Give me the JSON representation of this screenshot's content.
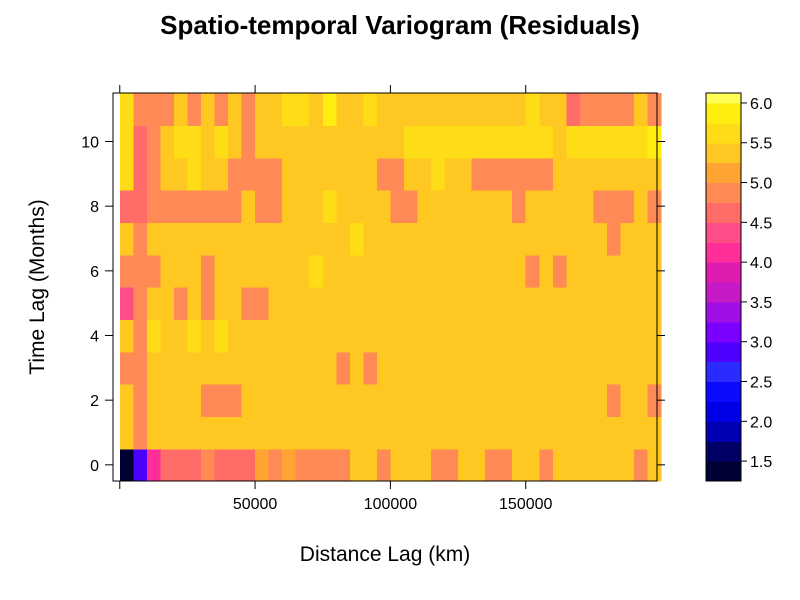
{
  "chart_data": {
    "type": "heatmap",
    "title": "Spatio-temporal Variogram (Residuals)",
    "xlabel": "Distance Lag (km)",
    "ylabel": "Time Lag (Months)",
    "xlim": [
      -2500,
      198500
    ],
    "ylim": [
      -0.5,
      11.5
    ],
    "x_ticks": [
      {
        "value": 50000,
        "label": "50000"
      },
      {
        "value": 100000,
        "label": "100000"
      },
      {
        "value": 150000,
        "label": "150000"
      }
    ],
    "y_ticks": [
      {
        "value": 0,
        "label": "0"
      },
      {
        "value": 2,
        "label": "2"
      },
      {
        "value": 4,
        "label": "4"
      },
      {
        "value": 6,
        "label": "6"
      },
      {
        "value": 8,
        "label": "8"
      },
      {
        "value": 10,
        "label": "10"
      }
    ],
    "x_bin_width": 5000,
    "x_bin_centers": [
      2500,
      7500,
      12500,
      17500,
      22500,
      27500,
      32500,
      37500,
      42500,
      47500,
      52500,
      57500,
      62500,
      67500,
      72500,
      77500,
      82500,
      87500,
      92500,
      97500,
      102500,
      107500,
      112500,
      117500,
      122500,
      127500,
      132500,
      137500,
      142500,
      147500,
      152500,
      157500,
      162500,
      167500,
      172500,
      177500,
      182500,
      187500,
      192500,
      197500
    ],
    "y_values": [
      0,
      1,
      2,
      3,
      4,
      5,
      6,
      7,
      8,
      9,
      10,
      11
    ],
    "z_rows": [
      [
        1.3,
        2.9,
        4.0,
        4.6,
        4.6,
        4.6,
        4.9,
        4.6,
        4.7,
        4.7,
        5.1,
        4.9,
        5.1,
        4.9,
        4.9,
        4.9,
        4.9,
        5.3,
        5.3,
        4.9,
        5.3,
        5.3,
        5.3,
        4.9,
        4.9,
        5.3,
        5.3,
        4.9,
        4.9,
        5.3,
        5.3,
        4.9,
        5.3,
        5.3,
        5.3,
        5.3,
        5.3,
        5.3,
        4.9,
        5.3
      ],
      [
        5.3,
        4.9,
        5.3,
        5.3,
        5.3,
        5.3,
        5.3,
        5.3,
        5.3,
        5.3,
        5.3,
        5.3,
        5.3,
        5.3,
        5.3,
        5.3,
        5.3,
        5.3,
        5.3,
        5.3,
        5.3,
        5.3,
        5.3,
        5.3,
        5.3,
        5.3,
        5.3,
        5.3,
        5.3,
        5.3,
        5.3,
        5.3,
        5.3,
        5.3,
        5.3,
        5.3,
        5.3,
        5.3,
        5.3,
        5.3
      ],
      [
        5.3,
        4.9,
        5.3,
        5.3,
        5.3,
        5.3,
        4.9,
        4.9,
        4.9,
        5.3,
        5.3,
        5.3,
        5.3,
        5.3,
        5.3,
        5.3,
        5.3,
        5.3,
        5.3,
        5.3,
        5.3,
        5.3,
        5.3,
        5.3,
        5.3,
        5.3,
        5.3,
        5.3,
        5.3,
        5.3,
        5.3,
        5.3,
        5.3,
        5.3,
        5.3,
        5.3,
        4.9,
        5.3,
        5.3,
        4.9
      ],
      [
        4.9,
        4.9,
        5.3,
        5.3,
        5.3,
        5.3,
        5.3,
        5.3,
        5.3,
        5.3,
        5.3,
        5.3,
        5.3,
        5.3,
        5.3,
        5.3,
        4.9,
        5.3,
        4.9,
        5.3,
        5.3,
        5.3,
        5.3,
        5.3,
        5.3,
        5.3,
        5.3,
        5.3,
        5.3,
        5.3,
        5.3,
        5.3,
        5.3,
        5.3,
        5.3,
        5.3,
        5.3,
        5.3,
        5.3,
        5.3
      ],
      [
        5.3,
        4.9,
        5.6,
        5.3,
        5.3,
        5.6,
        5.3,
        5.6,
        5.3,
        5.3,
        5.3,
        5.3,
        5.3,
        5.3,
        5.3,
        5.3,
        5.3,
        5.3,
        5.3,
        5.3,
        5.3,
        5.3,
        5.3,
        5.3,
        5.3,
        5.3,
        5.3,
        5.3,
        5.3,
        5.3,
        5.3,
        5.3,
        5.3,
        5.3,
        5.3,
        5.3,
        5.3,
        5.3,
        5.3,
        5.3
      ],
      [
        4.3,
        4.9,
        5.3,
        5.3,
        4.9,
        5.3,
        4.9,
        5.3,
        5.3,
        4.9,
        4.9,
        5.3,
        5.3,
        5.3,
        5.3,
        5.3,
        5.3,
        5.3,
        5.3,
        5.3,
        5.3,
        5.3,
        5.3,
        5.3,
        5.3,
        5.3,
        5.3,
        5.3,
        5.3,
        5.3,
        5.3,
        5.3,
        5.3,
        5.3,
        5.3,
        5.3,
        5.3,
        5.3,
        5.3,
        5.3
      ],
      [
        4.9,
        4.9,
        4.9,
        5.3,
        5.3,
        5.3,
        4.9,
        5.3,
        5.3,
        5.3,
        5.3,
        5.3,
        5.3,
        5.3,
        5.6,
        5.3,
        5.3,
        5.3,
        5.3,
        5.3,
        5.3,
        5.3,
        5.3,
        5.3,
        5.3,
        5.3,
        5.3,
        5.3,
        5.3,
        5.3,
        4.9,
        5.3,
        4.9,
        5.3,
        5.3,
        5.3,
        5.3,
        5.3,
        5.3,
        5.3
      ],
      [
        5.3,
        4.9,
        5.3,
        5.3,
        5.3,
        5.3,
        5.3,
        5.3,
        5.3,
        5.3,
        5.3,
        5.3,
        5.3,
        5.3,
        5.3,
        5.3,
        5.3,
        5.6,
        5.3,
        5.3,
        5.3,
        5.3,
        5.3,
        5.3,
        5.3,
        5.3,
        5.3,
        5.3,
        5.3,
        5.3,
        5.3,
        5.3,
        5.3,
        5.3,
        5.3,
        5.3,
        4.9,
        5.3,
        5.3,
        5.3
      ],
      [
        4.6,
        4.6,
        4.9,
        4.9,
        4.9,
        4.9,
        4.9,
        4.9,
        4.9,
        5.3,
        4.9,
        4.9,
        5.3,
        5.3,
        5.3,
        5.6,
        5.3,
        5.3,
        5.3,
        5.3,
        4.9,
        4.9,
        5.3,
        5.3,
        5.3,
        5.3,
        5.3,
        5.3,
        5.3,
        4.9,
        5.3,
        5.3,
        5.3,
        5.3,
        5.3,
        4.9,
        4.9,
        4.9,
        5.3,
        4.9
      ],
      [
        5.6,
        4.6,
        4.9,
        5.3,
        5.3,
        5.6,
        5.3,
        5.3,
        4.9,
        4.9,
        4.9,
        4.9,
        5.3,
        5.3,
        5.3,
        5.3,
        5.3,
        5.3,
        5.3,
        4.9,
        4.9,
        5.3,
        5.3,
        5.6,
        5.3,
        5.3,
        4.9,
        4.9,
        4.9,
        4.9,
        4.9,
        4.9,
        5.3,
        5.3,
        5.3,
        5.3,
        5.3,
        5.3,
        5.3,
        5.3
      ],
      [
        5.6,
        4.6,
        4.9,
        5.3,
        5.6,
        5.6,
        5.3,
        5.6,
        5.3,
        4.9,
        5.3,
        5.3,
        5.3,
        5.3,
        5.3,
        5.3,
        5.3,
        5.3,
        5.3,
        5.3,
        5.3,
        5.6,
        5.6,
        5.6,
        5.6,
        5.6,
        5.6,
        5.6,
        5.6,
        5.6,
        5.6,
        5.6,
        5.3,
        5.6,
        5.6,
        5.6,
        5.6,
        5.6,
        5.6,
        5.9
      ],
      [
        5.6,
        4.9,
        4.9,
        4.9,
        5.3,
        4.9,
        5.3,
        4.9,
        5.3,
        4.9,
        5.3,
        5.3,
        5.6,
        5.6,
        5.3,
        5.9,
        5.3,
        5.3,
        5.6,
        5.3,
        5.3,
        5.3,
        5.3,
        5.3,
        5.3,
        5.3,
        5.3,
        5.3,
        5.3,
        5.3,
        5.6,
        5.3,
        5.3,
        4.6,
        4.9,
        4.9,
        4.9,
        4.9,
        5.3,
        4.9
      ]
    ],
    "colorbar": {
      "levels": [
        1.25,
        1.5,
        1.75,
        2.0,
        2.25,
        2.5,
        2.75,
        3.0,
        3.25,
        3.5,
        3.75,
        4.0,
        4.25,
        4.5,
        4.75,
        5.0,
        5.25,
        5.5,
        5.75,
        6.0,
        6.125
      ],
      "colors": [
        "#000033",
        "#000066",
        "#0000B2",
        "#0000E6",
        "#0A0AFF",
        "#2B2BFF",
        "#4C00FF",
        "#7A00FF",
        "#A00FE6",
        "#C71AC7",
        "#E01BB0",
        "#FF2E99",
        "#FF4D88",
        "#FF6B66",
        "#FF8A55",
        "#FFA333",
        "#FFC722",
        "#FFDD16",
        "#FFEE0F",
        "#FFFF55"
      ],
      "tick_values": [
        1.5,
        2.0,
        2.5,
        3.0,
        3.5,
        4.0,
        4.5,
        5.0,
        5.5,
        6.0
      ],
      "tick_labels": [
        "1.5",
        "2.0",
        "2.5",
        "3.0",
        "3.5",
        "4.0",
        "4.5",
        "5.0",
        "5.5",
        "6.0"
      ]
    },
    "grid": false,
    "legend_placement": "right"
  }
}
